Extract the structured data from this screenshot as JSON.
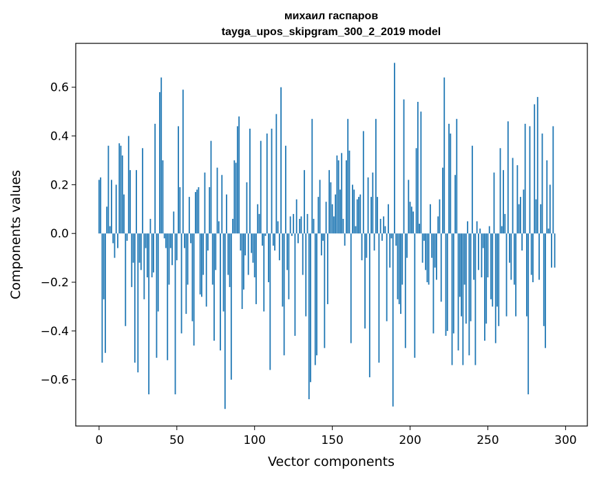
{
  "chart_data": {
    "type": "bar",
    "title_line1": "михаил гаспаров",
    "title_line2": "tayga_upos_skipgram_300_2_2019 model",
    "xlabel": "Vector components",
    "ylabel": "Components values",
    "xlim": [
      -15,
      314
    ],
    "ylim": [
      -0.79,
      0.78
    ],
    "xticks": [
      0,
      50,
      100,
      150,
      200,
      250,
      300
    ],
    "yticks": [
      -0.6,
      -0.4,
      -0.2,
      0.0,
      0.2,
      0.4,
      0.6
    ],
    "ytick_labels": [
      "−0.6",
      "−0.4",
      "−0.2",
      "0.0",
      "0.2",
      "0.4",
      "0.6"
    ],
    "bar_color": "#1f77b4",
    "values": [
      0.22,
      0.23,
      -0.53,
      -0.27,
      -0.49,
      0.11,
      0.36,
      0.03,
      0.22,
      -0.04,
      -0.1,
      0.2,
      -0.06,
      0.37,
      0.36,
      0.32,
      0.16,
      -0.38,
      -0.03,
      0.4,
      0.26,
      -0.22,
      -0.12,
      -0.53,
      0.26,
      -0.57,
      -0.12,
      -0.15,
      0.35,
      -0.27,
      -0.06,
      -0.18,
      -0.66,
      0.06,
      -0.18,
      -0.16,
      0.45,
      -0.51,
      -0.32,
      0.58,
      0.64,
      0.3,
      -0.02,
      -0.06,
      -0.52,
      -0.21,
      -0.06,
      -0.13,
      0.09,
      -0.66,
      -0.11,
      0.44,
      0.19,
      -0.41,
      0.59,
      -0.06,
      -0.33,
      -0.21,
      0.15,
      -0.04,
      -0.36,
      -0.46,
      0.17,
      0.18,
      0.19,
      -0.25,
      -0.26,
      -0.17,
      0.25,
      -0.3,
      -0.07,
      0.19,
      0.38,
      -0.21,
      -0.44,
      -0.15,
      0.27,
      0.05,
      -0.48,
      0.24,
      -0.32,
      -0.72,
      0.16,
      -0.17,
      -0.22,
      -0.6,
      0.06,
      0.3,
      0.29,
      0.44,
      0.48,
      -0.07,
      -0.31,
      -0.23,
      -0.09,
      0.21,
      -0.17,
      0.43,
      -0.08,
      -0.12,
      -0.18,
      -0.29,
      0.12,
      0.08,
      0.38,
      -0.05,
      -0.32,
      -0.01,
      0.41,
      -0.2,
      -0.56,
      0.43,
      -0.05,
      -0.07,
      0.49,
      0.05,
      -0.11,
      0.6,
      -0.3,
      -0.5,
      0.36,
      -0.15,
      -0.27,
      0.07,
      -0.01,
      0.08,
      -0.42,
      0.14,
      -0.04,
      0.06,
      0.07,
      -0.17,
      0.26,
      -0.34,
      0.08,
      -0.68,
      -0.61,
      0.47,
      0.06,
      -0.54,
      -0.5,
      0.15,
      0.22,
      -0.09,
      -0.03,
      -0.47,
      0.13,
      -0.29,
      0.26,
      0.21,
      0.12,
      0.07,
      0.16,
      0.32,
      0.3,
      0.18,
      0.33,
      0.06,
      -0.05,
      0.3,
      0.47,
      0.34,
      -0.45,
      0.2,
      0.18,
      0.03,
      0.14,
      0.15,
      0.16,
      -0.11,
      0.42,
      -0.39,
      -0.1,
      0.23,
      -0.59,
      0.15,
      0.25,
      -0.07,
      0.47,
      0.15,
      -0.53,
      0.06,
      -0.03,
      0.07,
      0.03,
      -0.36,
      0.12,
      -0.14,
      -0.02,
      -0.71,
      0.7,
      -0.05,
      -0.27,
      -0.29,
      -0.33,
      -0.21,
      0.55,
      -0.47,
      -0.1,
      0.22,
      0.13,
      0.11,
      0.09,
      -0.51,
      0.35,
      0.54,
      0.04,
      0.5,
      -0.12,
      -0.03,
      -0.15,
      -0.2,
      -0.21,
      0.12,
      -0.1,
      -0.41,
      -0.14,
      -0.19,
      0.07,
      0.14,
      -0.28,
      0.27,
      0.64,
      -0.42,
      -0.4,
      0.45,
      0.41,
      -0.54,
      -0.41,
      0.24,
      0.47,
      -0.48,
      -0.26,
      -0.34,
      -0.54,
      -0.21,
      -0.37,
      0.05,
      -0.5,
      -0.36,
      0.36,
      -0.19,
      -0.54,
      0.05,
      -0.15,
      0.02,
      -0.18,
      -0.06,
      -0.44,
      -0.37,
      -0.18,
      0.03,
      -0.27,
      -0.3,
      0.25,
      -0.45,
      -0.3,
      -0.38,
      0.35,
      0.03,
      0.26,
      0.08,
      -0.34,
      0.46,
      -0.12,
      -0.19,
      0.31,
      -0.21,
      -0.34,
      0.28,
      0.12,
      0.15,
      -0.07,
      0.18,
      0.45,
      -0.34,
      -0.66,
      0.44,
      -0.17,
      -0.2,
      0.53,
      0.14,
      0.56,
      -0.19,
      0.12,
      0.41,
      -0.38,
      -0.47,
      0.3,
      0.02,
      0.2,
      -0.14,
      0.44,
      -0.14
    ]
  }
}
